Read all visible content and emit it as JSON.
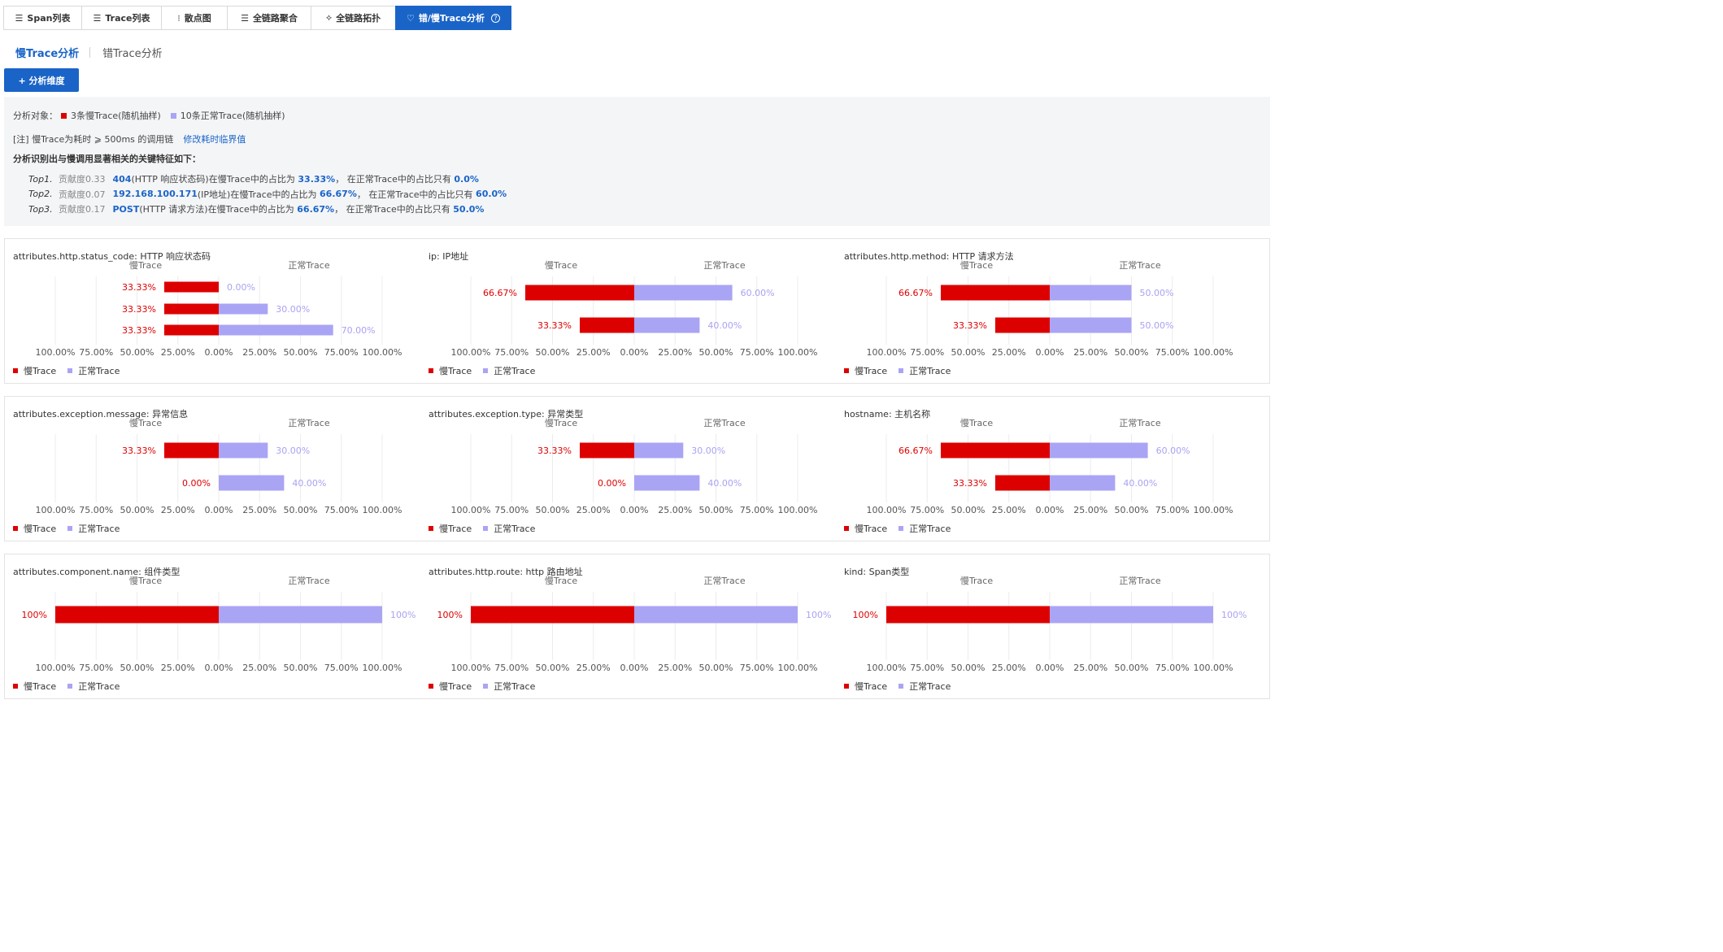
{
  "tabs": [
    {
      "label": "Span列表",
      "icon": "list-icon",
      "glyph": "☰",
      "width": 97
    },
    {
      "label": "Trace列表",
      "icon": "list-icon",
      "glyph": "☰",
      "width": 99
    },
    {
      "label": "散点图",
      "icon": "scatter-icon",
      "glyph": "⁝",
      "width": 82
    },
    {
      "label": "全链路聚合",
      "icon": "list-icon",
      "glyph": "☰",
      "width": 104
    },
    {
      "label": "全链路拓扑",
      "icon": "topology-icon",
      "glyph": "⟡",
      "width": 105
    },
    {
      "label": "错/慢Trace分析",
      "icon": "heart-icon",
      "glyph": "♡",
      "width": 143,
      "active": true,
      "help_icon": "question-circle-icon"
    }
  ],
  "subtabs": [
    {
      "label": "慢Trace分析",
      "active": true
    },
    {
      "label": "错Trace分析",
      "active": false
    }
  ],
  "add_button": "+ 分析维度",
  "info": {
    "target_label": "分析对象：",
    "slow_legend": "3条慢Trace(随机抽样)",
    "normal_legend": "10条正常Trace(随机抽样)",
    "note": "[注] 慢Trace为耗时 ⩾ 500ms 的调用链",
    "modify_link": "修改耗时临界值",
    "summary": "分析识别出与慢调用显著相关的关键特征如下：",
    "tops": [
      {
        "label": "Top1.",
        "contrib": "贡献度0.33",
        "value": "404",
        "desc": "(HTTP 响应状态码)在慢Trace中的占比为 ",
        "slow_pct": "33.33%",
        "mid": "， 在正常Trace中的占比只有 ",
        "normal_pct": "0.0%"
      },
      {
        "label": "Top2.",
        "contrib": "贡献度0.07",
        "value": "192.168.100.171",
        "desc": "(IP地址)在慢Trace中的占比为 ",
        "slow_pct": "66.67%",
        "mid": "， 在正常Trace中的占比只有 ",
        "normal_pct": "60.0%"
      },
      {
        "label": "Top3.",
        "contrib": "贡献度0.17",
        "value": "POST",
        "desc": "(HTTP 请求方法)在慢Trace中的占比为 ",
        "slow_pct": "66.67%",
        "mid": "， 在正常Trace中的占比只有 ",
        "normal_pct": "50.0%"
      }
    ]
  },
  "colors": {
    "slow": "#dd0000",
    "normal": "#aaa4f5",
    "slow_text": "#dd0000",
    "normal_text": "#a8a2f2",
    "accent": "#1a64c8"
  },
  "chart_legend": {
    "slow": "慢Trace",
    "normal": "正常Trace"
  },
  "chart_data": [
    {
      "type": "bar",
      "title": "attributes.http.status_code: HTTP 响应状态码",
      "left_header": "慢Trace",
      "right_header": "正常Trace",
      "ticks": [
        "100.00%",
        "75.00%",
        "50.00%",
        "25.00%",
        "0.00%",
        "25.00%",
        "50.00%",
        "75.00%",
        "100.00%"
      ],
      "rows": [
        {
          "slow": 33.33,
          "normal": 0,
          "slow_label": "33.33%",
          "normal_label": "0.00%"
        },
        {
          "slow": 33.33,
          "normal": 30,
          "slow_label": "33.33%",
          "normal_label": "30.00%"
        },
        {
          "slow": 33.33,
          "normal": 70,
          "slow_label": "33.33%",
          "normal_label": "70.00%"
        }
      ]
    },
    {
      "type": "bar",
      "title": "ip: IP地址",
      "left_header": "慢Trace",
      "right_header": "正常Trace",
      "ticks": [
        "100.00%",
        "75.00%",
        "50.00%",
        "25.00%",
        "0.00%",
        "25.00%",
        "50.00%",
        "75.00%",
        "100.00%"
      ],
      "rows": [
        {
          "slow": 66.67,
          "normal": 60,
          "slow_label": "66.67%",
          "normal_label": "60.00%"
        },
        {
          "slow": 33.33,
          "normal": 40,
          "slow_label": "33.33%",
          "normal_label": "40.00%"
        }
      ]
    },
    {
      "type": "bar",
      "title": "attributes.http.method: HTTP 请求方法",
      "left_header": "慢Trace",
      "right_header": "正常Trace",
      "ticks": [
        "100.00%",
        "75.00%",
        "50.00%",
        "25.00%",
        "0.00%",
        "25.00%",
        "50.00%",
        "75.00%",
        "100.00%"
      ],
      "rows": [
        {
          "slow": 66.67,
          "normal": 50,
          "slow_label": "66.67%",
          "normal_label": "50.00%"
        },
        {
          "slow": 33.33,
          "normal": 50,
          "slow_label": "33.33%",
          "normal_label": "50.00%"
        }
      ]
    },
    {
      "type": "bar",
      "title": "attributes.exception.message: 异常信息",
      "left_header": "慢Trace",
      "right_header": "正常Trace",
      "ticks": [
        "100.00%",
        "75.00%",
        "50.00%",
        "25.00%",
        "0.00%",
        "25.00%",
        "50.00%",
        "75.00%",
        "100.00%"
      ],
      "rows": [
        {
          "slow": 33.33,
          "normal": 30,
          "slow_label": "33.33%",
          "normal_label": "30.00%"
        },
        {
          "slow": 0,
          "normal": 40,
          "slow_label": "0.00%",
          "normal_label": "40.00%"
        }
      ]
    },
    {
      "type": "bar",
      "title": "attributes.exception.type: 异常类型",
      "left_header": "慢Trace",
      "right_header": "正常Trace",
      "ticks": [
        "100.00%",
        "75.00%",
        "50.00%",
        "25.00%",
        "0.00%",
        "25.00%",
        "50.00%",
        "75.00%",
        "100.00%"
      ],
      "rows": [
        {
          "slow": 33.33,
          "normal": 30,
          "slow_label": "33.33%",
          "normal_label": "30.00%"
        },
        {
          "slow": 0,
          "normal": 40,
          "slow_label": "0.00%",
          "normal_label": "40.00%"
        }
      ]
    },
    {
      "type": "bar",
      "title": "hostname: 主机名称",
      "left_header": "慢Trace",
      "right_header": "正常Trace",
      "ticks": [
        "100.00%",
        "75.00%",
        "50.00%",
        "25.00%",
        "0.00%",
        "25.00%",
        "50.00%",
        "75.00%",
        "100.00%"
      ],
      "rows": [
        {
          "slow": 66.67,
          "normal": 60,
          "slow_label": "66.67%",
          "normal_label": "60.00%"
        },
        {
          "slow": 33.33,
          "normal": 40,
          "slow_label": "33.33%",
          "normal_label": "40.00%"
        }
      ]
    },
    {
      "type": "bar",
      "title": "attributes.component.name: 组件类型",
      "left_header": "慢Trace",
      "right_header": "正常Trace",
      "ticks": [
        "100.00%",
        "75.00%",
        "50.00%",
        "25.00%",
        "0.00%",
        "25.00%",
        "50.00%",
        "75.00%",
        "100.00%"
      ],
      "rows": [
        {
          "slow": 100,
          "normal": 100,
          "slow_label": "100%",
          "normal_label": "100%"
        }
      ]
    },
    {
      "type": "bar",
      "title": "attributes.http.route: http 路由地址",
      "left_header": "慢Trace",
      "right_header": "正常Trace",
      "ticks": [
        "100.00%",
        "75.00%",
        "50.00%",
        "25.00%",
        "0.00%",
        "25.00%",
        "50.00%",
        "75.00%",
        "100.00%"
      ],
      "rows": [
        {
          "slow": 100,
          "normal": 100,
          "slow_label": "100%",
          "normal_label": "100%"
        }
      ]
    },
    {
      "type": "bar",
      "title": "kind: Span类型",
      "left_header": "慢Trace",
      "right_header": "正常Trace",
      "ticks": [
        "100.00%",
        "75.00%",
        "50.00%",
        "25.00%",
        "0.00%",
        "25.00%",
        "50.00%",
        "75.00%",
        "100.00%"
      ],
      "rows": [
        {
          "slow": 100,
          "normal": 100,
          "slow_label": "100%",
          "normal_label": "100%"
        }
      ]
    }
  ]
}
